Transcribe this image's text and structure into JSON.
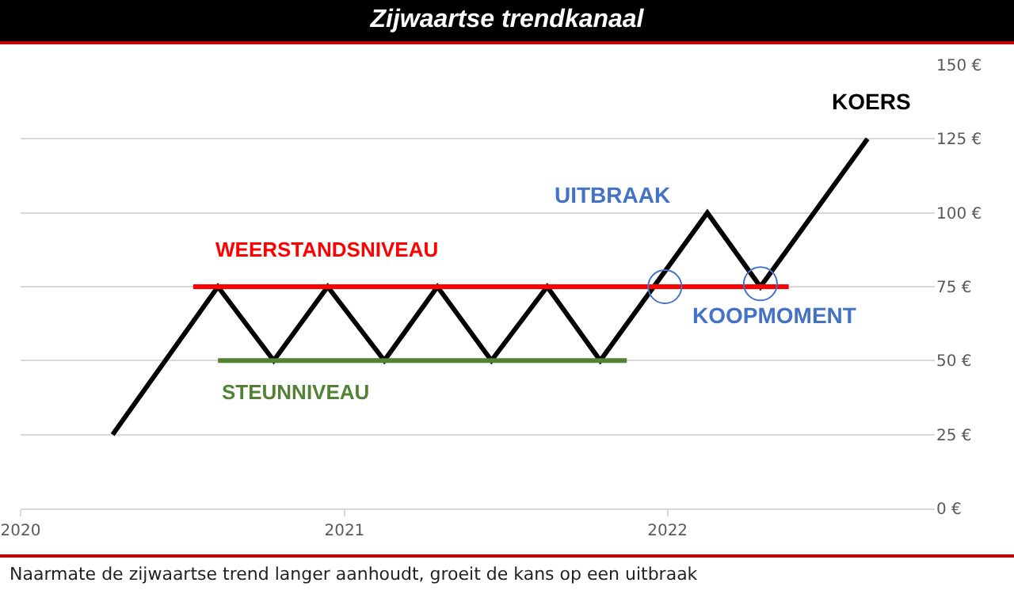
{
  "chart_data": {
    "type": "line",
    "title": "Zijwaartse trendkanaal",
    "x": [
      "2020-04-14",
      "2020-08-11",
      "2020-10-13",
      "2020-12-13",
      "2021-02-15",
      "2021-04-16",
      "2021-06-16",
      "2021-08-18",
      "2021-10-17",
      "2022-02-15",
      "2022-04-16",
      "2022-08-15"
    ],
    "series": [
      {
        "name": "KOERS",
        "color": "#000000",
        "values": [
          25,
          75,
          50,
          75,
          50,
          75,
          50,
          75,
          50,
          100,
          75,
          125
        ]
      },
      {
        "name": "WEERSTANDSNIVEAU",
        "color": "#ff0000",
        "x": [
          "2020-07-14",
          "2022-05-18"
        ],
        "values": [
          75,
          75
        ]
      },
      {
        "name": "STEUNNIVEAU",
        "color": "#548235",
        "x": [
          "2020-08-11",
          "2021-11-16"
        ],
        "values": [
          50,
          50
        ]
      },
      {
        "type": "scatter",
        "color": "#4472c4",
        "x": [
          "2021-12-29",
          "2022-04-16"
        ],
        "values": [
          75,
          76
        ]
      }
    ],
    "xlim": [
      "2020-01-01",
      "2022-10-30"
    ],
    "xticks": [
      {
        "value": "2020-01-01",
        "label": "2020"
      },
      {
        "value": "2021-01-01",
        "label": "2021"
      },
      {
        "value": "2022-01-01",
        "label": "2022"
      }
    ],
    "ylim": [
      0,
      150
    ],
    "yticks": [
      {
        "value": 0,
        "label": "0 €"
      },
      {
        "value": 25,
        "label": "25 €"
      },
      {
        "value": 50,
        "label": "50 €"
      },
      {
        "value": 75,
        "label": "75 €"
      },
      {
        "value": 100,
        "label": "100 €"
      },
      {
        "value": 125,
        "label": "125 €"
      },
      {
        "value": 150,
        "label": "150 €"
      }
    ],
    "grid": "y",
    "legend": false,
    "line_style": "solid",
    "annotations": [
      "UITBRAAK",
      "KOOPMOMENT",
      "Naarmate de zijwaartse trend langer aanhoudt, groeit de kans op een uitbraak"
    ]
  }
}
